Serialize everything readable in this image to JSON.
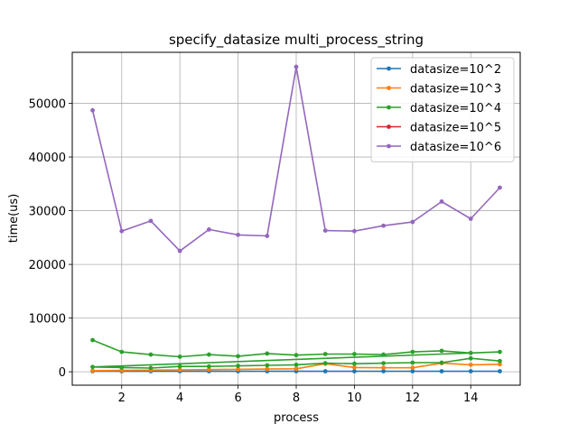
{
  "chart_data": {
    "type": "line",
    "title": "specify_datasize multi_process_string",
    "xlabel": "process",
    "ylabel": "time(us)",
    "xlim": [
      0.3,
      15.7
    ],
    "ylim": [
      -2500,
      59500
    ],
    "xticks": [
      2,
      4,
      6,
      8,
      10,
      12,
      14
    ],
    "yticks": [
      0,
      10000,
      20000,
      30000,
      40000,
      50000
    ],
    "grid": true,
    "legend_position": "top-right",
    "series": [
      {
        "name": "datasize=10^2",
        "color": "#1f77b4",
        "x": [
          1,
          2,
          3,
          4,
          5,
          6,
          7,
          8,
          9,
          10,
          11,
          12,
          13,
          14,
          15
        ],
        "y": [
          100,
          100,
          100,
          100,
          100,
          100,
          100,
          100,
          100,
          100,
          100,
          100,
          100,
          100,
          100
        ]
      },
      {
        "name": "datasize=10^3",
        "color": "#ff7f0e",
        "x": [
          1,
          2,
          3,
          4,
          5,
          6,
          7,
          8,
          9,
          10,
          11,
          12,
          13,
          14,
          15
        ],
        "y": [
          200,
          250,
          300,
          350,
          400,
          450,
          500,
          550,
          1500,
          800,
          750,
          750,
          1600,
          1300,
          1400
        ]
      },
      {
        "name": "datasize=10^4",
        "color": "#2ca02c",
        "x": [
          1,
          2,
          3,
          4,
          5,
          6,
          7,
          8,
          9,
          10,
          11,
          12,
          13,
          14,
          15,
          1,
          2,
          3,
          4,
          5,
          6,
          7,
          8,
          9,
          10,
          11,
          12,
          13,
          14,
          15
        ],
        "y": [
          5900,
          3700,
          3200,
          2800,
          3200,
          2900,
          3400,
          3100,
          3300,
          3300,
          3200,
          3700,
          3900,
          3500,
          3700,
          900,
          800,
          700,
          1000,
          1000,
          1100,
          1200,
          1300,
          1600,
          1500,
          1600,
          1700,
          1700,
          2500,
          2000
        ]
      },
      {
        "name": "datasize=10^5",
        "color": "#d62728",
        "x": [],
        "y": []
      },
      {
        "name": "datasize=10^6",
        "color": "#9467bd",
        "x": [
          1,
          2,
          3,
          4,
          5,
          6,
          7,
          8,
          9,
          10,
          11,
          12,
          13,
          14,
          15
        ],
        "y": [
          48700,
          26200,
          28100,
          22500,
          26500,
          25500,
          25300,
          56800,
          26300,
          26200,
          27200,
          27900,
          31700,
          28500,
          34300
        ]
      }
    ]
  }
}
